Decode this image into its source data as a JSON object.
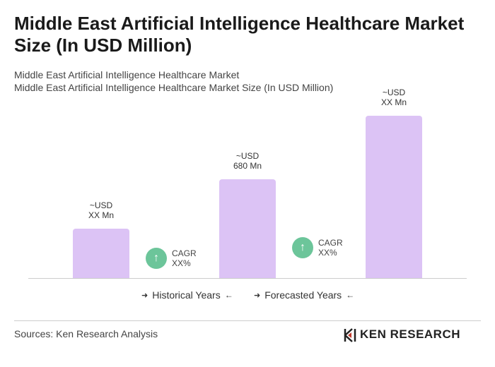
{
  "chart_data": {
    "type": "bar",
    "title": "Middle East Artificial Intelligence Healthcare Market Size (In USD Million)",
    "subtitle": [
      "Middle East Artificial Intelligence Healthcare Market",
      "Middle East Artificial Intelligence Healthcare Market Size (In USD Million)"
    ],
    "values": [
      340,
      680,
      1117
    ],
    "value_labels": [
      "~USD XX Mn",
      "~USD 680 Mn",
      "~USD XX Mn"
    ],
    "color": "#dcc3f5",
    "annotations": [
      "CAGR XX%",
      "CAGR XX%"
    ],
    "legend": [
      "Historical Years",
      "Forecasted Years"
    ],
    "source": "Sources: Ken Research Analysis",
    "logo": "KEN RESEARCH"
  }
}
